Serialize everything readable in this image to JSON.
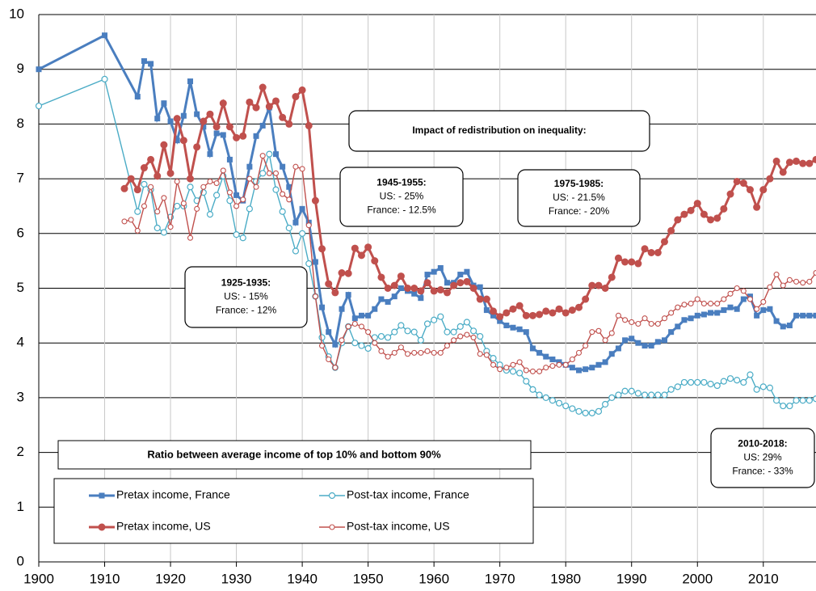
{
  "chart_data": {
    "type": "line",
    "xlim": [
      1900,
      2018
    ],
    "xticks": [
      1900,
      1910,
      1920,
      1930,
      1940,
      1950,
      1960,
      1970,
      1980,
      1990,
      2000,
      2010
    ],
    "ylim": [
      0,
      10
    ],
    "yticks": [
      0,
      1,
      2,
      3,
      4,
      5,
      6,
      7,
      8,
      9,
      10
    ],
    "grid": true,
    "legend_title": "Ratio between average income of top 10% and bottom 90%",
    "annotations": [
      {
        "title": "Impact of redistribution on inequality:",
        "lines": []
      },
      {
        "title": "1945-1955:",
        "lines": [
          "US: - 25%",
          "France: - 12.5%"
        ]
      },
      {
        "title": "1975-1985:",
        "lines": [
          "US: - 21.5%",
          "France: - 20%"
        ]
      },
      {
        "title": "1925-1935:",
        "lines": [
          "US: - 15%",
          "France: - 12%"
        ]
      },
      {
        "title": "2010-2018:",
        "lines": [
          "US: 29%",
          "France: - 33%"
        ]
      }
    ],
    "series": [
      {
        "name": "Pretax income, France",
        "color": "#4a7ebf",
        "marker": "square",
        "x": [
          1900,
          1910,
          1915,
          1916,
          1917,
          1918,
          1919,
          1920,
          1921,
          1922,
          1923,
          1924,
          1925,
          1926,
          1927,
          1928,
          1929,
          1930,
          1931,
          1932,
          1933,
          1934,
          1935,
          1936,
          1937,
          1938,
          1939,
          1940,
          1941,
          1942,
          1943,
          1944,
          1945,
          1946,
          1947,
          1948,
          1949,
          1950,
          1951,
          1952,
          1953,
          1954,
          1955,
          1956,
          1957,
          1958,
          1959,
          1960,
          1961,
          1962,
          1963,
          1964,
          1965,
          1966,
          1967,
          1968,
          1969,
          1970,
          1971,
          1972,
          1973,
          1974,
          1975,
          1976,
          1977,
          1978,
          1979,
          1980,
          1981,
          1982,
          1983,
          1984,
          1985,
          1986,
          1987,
          1988,
          1989,
          1990,
          1991,
          1992,
          1993,
          1994,
          1995,
          1996,
          1997,
          1998,
          1999,
          2000,
          2001,
          2002,
          2003,
          2004,
          2005,
          2006,
          2007,
          2008,
          2009,
          2010,
          2011,
          2012,
          2013,
          2014,
          2015,
          2016,
          2017,
          2018
        ],
        "values": [
          9.0,
          9.62,
          8.5,
          9.15,
          9.1,
          8.1,
          8.38,
          8.05,
          7.7,
          8.15,
          8.78,
          8.18,
          7.95,
          7.45,
          7.83,
          7.8,
          7.35,
          6.7,
          6.6,
          7.22,
          7.78,
          7.97,
          8.3,
          7.45,
          7.22,
          6.85,
          6.2,
          6.45,
          6.2,
          5.48,
          4.65,
          4.2,
          3.97,
          4.62,
          4.88,
          4.45,
          4.5,
          4.5,
          4.62,
          4.8,
          4.75,
          4.85,
          5.0,
          4.95,
          4.9,
          4.82,
          5.25,
          5.3,
          5.37,
          5.1,
          5.1,
          5.25,
          5.3,
          5.05,
          5.02,
          4.6,
          4.5,
          4.4,
          4.32,
          4.28,
          4.25,
          4.2,
          3.9,
          3.82,
          3.75,
          3.7,
          3.65,
          3.6,
          3.55,
          3.5,
          3.52,
          3.55,
          3.6,
          3.65,
          3.8,
          3.9,
          4.05,
          4.08,
          4.0,
          3.95,
          3.95,
          4.02,
          4.05,
          4.2,
          4.3,
          4.42,
          4.45,
          4.5,
          4.52,
          4.55,
          4.55,
          4.6,
          4.65,
          4.62,
          4.8,
          4.85,
          4.5,
          4.6,
          4.62,
          4.4,
          4.3,
          4.32,
          4.5,
          4.5,
          4.5,
          4.5
        ]
      },
      {
        "name": "Post-tax income, France",
        "color": "#4bacc6",
        "marker": "open-circle",
        "x": [
          1900,
          1910,
          1915,
          1916,
          1917,
          1918,
          1919,
          1920,
          1921,
          1922,
          1923,
          1924,
          1925,
          1926,
          1927,
          1928,
          1929,
          1930,
          1931,
          1932,
          1933,
          1934,
          1935,
          1936,
          1937,
          1938,
          1939,
          1940,
          1941,
          1942,
          1943,
          1944,
          1945,
          1946,
          1947,
          1948,
          1949,
          1950,
          1951,
          1952,
          1953,
          1954,
          1955,
          1956,
          1957,
          1958,
          1959,
          1960,
          1961,
          1962,
          1963,
          1964,
          1965,
          1966,
          1967,
          1968,
          1969,
          1970,
          1971,
          1972,
          1973,
          1974,
          1975,
          1976,
          1977,
          1978,
          1979,
          1980,
          1981,
          1982,
          1983,
          1984,
          1985,
          1986,
          1987,
          1988,
          1989,
          1990,
          1991,
          1992,
          1993,
          1994,
          1995,
          1996,
          1997,
          1998,
          1999,
          2000,
          2001,
          2002,
          2003,
          2004,
          2005,
          2006,
          2007,
          2008,
          2009,
          2010,
          2011,
          2012,
          2013,
          2014,
          2015,
          2016,
          2017,
          2018
        ],
        "values": [
          8.33,
          8.82,
          6.4,
          6.9,
          6.8,
          6.1,
          6.02,
          6.3,
          6.5,
          6.5,
          6.85,
          6.6,
          6.75,
          6.35,
          6.7,
          7.05,
          6.6,
          5.98,
          5.92,
          6.45,
          6.95,
          7.1,
          7.45,
          6.8,
          6.4,
          6.1,
          5.68,
          6.0,
          5.45,
          4.85,
          4.1,
          3.75,
          3.55,
          4.0,
          4.3,
          4.0,
          3.95,
          3.9,
          4.1,
          4.12,
          4.1,
          4.2,
          4.32,
          4.22,
          4.2,
          4.05,
          4.35,
          4.42,
          4.48,
          4.2,
          4.2,
          4.3,
          4.38,
          4.22,
          4.12,
          3.85,
          3.72,
          3.6,
          3.5,
          3.48,
          3.45,
          3.3,
          3.15,
          3.05,
          3.0,
          2.95,
          2.9,
          2.85,
          2.8,
          2.75,
          2.72,
          2.72,
          2.75,
          2.88,
          3.0,
          3.05,
          3.12,
          3.12,
          3.08,
          3.05,
          3.05,
          3.05,
          3.05,
          3.15,
          3.2,
          3.28,
          3.28,
          3.28,
          3.28,
          3.25,
          3.22,
          3.3,
          3.35,
          3.32,
          3.28,
          3.42,
          3.15,
          3.2,
          3.18,
          2.95,
          2.85,
          2.85,
          2.95,
          2.95,
          2.95,
          2.98
        ]
      },
      {
        "name": "Pretax income, US",
        "color": "#c0504d",
        "marker": "circle",
        "x": [
          1913,
          1914,
          1915,
          1916,
          1917,
          1918,
          1919,
          1920,
          1921,
          1922,
          1923,
          1924,
          1925,
          1926,
          1927,
          1928,
          1929,
          1930,
          1931,
          1932,
          1933,
          1934,
          1935,
          1936,
          1937,
          1938,
          1939,
          1940,
          1941,
          1942,
          1943,
          1944,
          1945,
          1946,
          1947,
          1948,
          1949,
          1950,
          1951,
          1952,
          1953,
          1954,
          1955,
          1956,
          1957,
          1958,
          1959,
          1960,
          1961,
          1962,
          1963,
          1964,
          1965,
          1966,
          1967,
          1968,
          1969,
          1970,
          1971,
          1972,
          1973,
          1974,
          1975,
          1976,
          1977,
          1978,
          1979,
          1980,
          1981,
          1982,
          1983,
          1984,
          1985,
          1986,
          1987,
          1988,
          1989,
          1990,
          1991,
          1992,
          1993,
          1994,
          1995,
          1996,
          1997,
          1998,
          1999,
          2000,
          2001,
          2002,
          2003,
          2004,
          2005,
          2006,
          2007,
          2008,
          2009,
          2010,
          2011,
          2012,
          2013,
          2014,
          2015,
          2016,
          2017,
          2018
        ],
        "values": [
          6.82,
          7.0,
          6.8,
          7.2,
          7.35,
          7.05,
          7.62,
          7.1,
          8.1,
          7.7,
          7.0,
          7.58,
          8.05,
          8.18,
          7.95,
          8.38,
          7.95,
          7.75,
          7.78,
          8.4,
          8.3,
          8.67,
          8.32,
          8.42,
          8.12,
          8.0,
          8.5,
          8.62,
          7.97,
          6.6,
          5.72,
          5.08,
          4.92,
          5.28,
          5.27,
          5.73,
          5.6,
          5.75,
          5.5,
          5.2,
          5.0,
          5.05,
          5.22,
          5.0,
          5.0,
          4.95,
          5.1,
          4.95,
          4.97,
          4.92,
          5.05,
          5.1,
          5.12,
          5.0,
          4.8,
          4.8,
          4.58,
          4.48,
          4.55,
          4.62,
          4.68,
          4.5,
          4.5,
          4.52,
          4.58,
          4.55,
          4.62,
          4.55,
          4.6,
          4.65,
          4.8,
          5.05,
          5.05,
          5.0,
          5.2,
          5.55,
          5.48,
          5.48,
          5.45,
          5.72,
          5.65,
          5.65,
          5.85,
          6.05,
          6.25,
          6.35,
          6.42,
          6.55,
          6.35,
          6.25,
          6.28,
          6.45,
          6.72,
          6.95,
          6.92,
          6.8,
          6.48,
          6.8,
          7.0,
          7.32,
          7.12,
          7.3,
          7.32,
          7.28,
          7.28,
          7.35
        ]
      },
      {
        "name": "Post-tax income, US",
        "color": "#c0504d",
        "marker": "small-open-circle",
        "x": [
          1913,
          1914,
          1915,
          1916,
          1917,
          1918,
          1919,
          1920,
          1921,
          1922,
          1923,
          1924,
          1925,
          1926,
          1927,
          1928,
          1929,
          1930,
          1931,
          1932,
          1933,
          1934,
          1935,
          1936,
          1937,
          1938,
          1939,
          1940,
          1941,
          1942,
          1943,
          1944,
          1945,
          1946,
          1947,
          1948,
          1949,
          1950,
          1951,
          1952,
          1953,
          1954,
          1955,
          1956,
          1957,
          1958,
          1959,
          1960,
          1961,
          1962,
          1963,
          1964,
          1965,
          1966,
          1967,
          1968,
          1969,
          1970,
          1971,
          1972,
          1973,
          1974,
          1975,
          1976,
          1977,
          1978,
          1979,
          1980,
          1981,
          1982,
          1983,
          1984,
          1985,
          1986,
          1987,
          1988,
          1989,
          1990,
          1991,
          1992,
          1993,
          1994,
          1995,
          1996,
          1997,
          1998,
          1999,
          2000,
          2001,
          2002,
          2003,
          2004,
          2005,
          2006,
          2007,
          2008,
          2009,
          2010,
          2011,
          2012,
          2013,
          2014,
          2015,
          2016,
          2017,
          2018
        ],
        "values": [
          6.22,
          6.25,
          6.05,
          6.5,
          6.85,
          6.4,
          6.65,
          6.12,
          6.95,
          6.55,
          5.92,
          6.45,
          6.85,
          6.95,
          6.92,
          7.15,
          6.75,
          6.5,
          6.62,
          7.0,
          6.85,
          7.42,
          7.1,
          7.1,
          6.72,
          6.62,
          7.22,
          7.18,
          6.15,
          4.85,
          3.95,
          3.7,
          3.55,
          4.05,
          4.3,
          4.35,
          4.3,
          4.2,
          4.0,
          3.85,
          3.75,
          3.82,
          3.92,
          3.8,
          3.82,
          3.82,
          3.85,
          3.82,
          3.82,
          3.95,
          4.05,
          4.12,
          4.15,
          4.1,
          3.8,
          3.78,
          3.6,
          3.52,
          3.55,
          3.6,
          3.65,
          3.5,
          3.48,
          3.48,
          3.55,
          3.58,
          3.6,
          3.6,
          3.7,
          3.82,
          3.95,
          4.2,
          4.22,
          4.05,
          4.18,
          4.5,
          4.42,
          4.38,
          4.35,
          4.45,
          4.35,
          4.35,
          4.45,
          4.55,
          4.65,
          4.7,
          4.72,
          4.8,
          4.72,
          4.72,
          4.72,
          4.8,
          4.9,
          5.0,
          4.95,
          4.8,
          4.62,
          4.75,
          5.02,
          5.25,
          5.05,
          5.15,
          5.12,
          5.1,
          5.12,
          5.28
        ]
      }
    ]
  }
}
